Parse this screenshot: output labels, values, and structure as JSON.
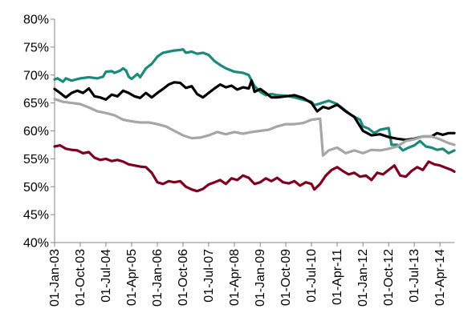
{
  "chart_data": {
    "type": "line",
    "title": "",
    "xlabel": "",
    "ylabel": "",
    "ylim": [
      0.4,
      0.8
    ],
    "xlim": [
      "2003-01-01",
      "2014-09-01"
    ],
    "grid": false,
    "legend": "none",
    "y_ticks": [
      0.4,
      0.45,
      0.5,
      0.55,
      0.6,
      0.65,
      0.7,
      0.75,
      0.8
    ],
    "y_tick_labels": [
      "40%",
      "45%",
      "50%",
      "55%",
      "60%",
      "65%",
      "70%",
      "75%",
      "80%"
    ],
    "x_tick_labels": [
      "01-Jan-03",
      "01-Oct-03",
      "01-Jul-04",
      "01-Apr-05",
      "01-Jan-06",
      "01-Oct-06",
      "01-Jul-07",
      "01-Apr-08",
      "01-Jan-09",
      "01-Oct-09",
      "01-Jul-10",
      "01-Apr-11",
      "01-Jan-12",
      "01-Oct-12",
      "01-Jul-13",
      "01-Apr-14"
    ],
    "x_tick_values": [
      "2003-01-01",
      "2003-10-01",
      "2004-07-01",
      "2005-04-01",
      "2006-01-01",
      "2006-10-01",
      "2007-07-01",
      "2008-04-01",
      "2009-01-01",
      "2009-10-01",
      "2010-07-01",
      "2011-04-01",
      "2012-01-01",
      "2012-10-01",
      "2013-07-01",
      "2014-04-01"
    ],
    "series": [
      {
        "color": "#1a8a7a",
        "points": [
          [
            "2003-01-01",
            0.692
          ],
          [
            "2003-02-01",
            0.694
          ],
          [
            "2003-04-01",
            0.688
          ],
          [
            "2003-05-01",
            0.694
          ],
          [
            "2003-07-01",
            0.69
          ],
          [
            "2003-10-01",
            0.694
          ],
          [
            "2004-01-01",
            0.696
          ],
          [
            "2004-04-01",
            0.694
          ],
          [
            "2004-06-01",
            0.697
          ],
          [
            "2004-07-01",
            0.706
          ],
          [
            "2004-09-01",
            0.707
          ],
          [
            "2004-10-01",
            0.704
          ],
          [
            "2004-12-01",
            0.708
          ],
          [
            "2005-01-01",
            0.712
          ],
          [
            "2005-02-01",
            0.708
          ],
          [
            "2005-03-01",
            0.697
          ],
          [
            "2005-04-01",
            0.693
          ],
          [
            "2005-06-01",
            0.702
          ],
          [
            "2005-07-01",
            0.696
          ],
          [
            "2005-09-01",
            0.712
          ],
          [
            "2005-11-01",
            0.72
          ],
          [
            "2006-01-01",
            0.733
          ],
          [
            "2006-03-01",
            0.74
          ],
          [
            "2006-05-01",
            0.742
          ],
          [
            "2006-07-01",
            0.744
          ],
          [
            "2006-09-01",
            0.745
          ],
          [
            "2006-10-01",
            0.746
          ],
          [
            "2006-11-01",
            0.74
          ],
          [
            "2007-01-01",
            0.742
          ],
          [
            "2007-03-01",
            0.738
          ],
          [
            "2007-05-01",
            0.74
          ],
          [
            "2007-07-01",
            0.736
          ],
          [
            "2007-09-01",
            0.725
          ],
          [
            "2007-11-01",
            0.718
          ],
          [
            "2008-01-01",
            0.712
          ],
          [
            "2008-04-01",
            0.706
          ],
          [
            "2008-07-01",
            0.704
          ],
          [
            "2008-09-01",
            0.7
          ],
          [
            "2008-10-01",
            0.69
          ],
          [
            "2008-11-01",
            0.68
          ],
          [
            "2009-01-01",
            0.67
          ],
          [
            "2009-03-01",
            0.664
          ],
          [
            "2009-05-01",
            0.666
          ],
          [
            "2009-07-01",
            0.664
          ],
          [
            "2009-10-01",
            0.663
          ],
          [
            "2010-01-01",
            0.66
          ],
          [
            "2010-04-01",
            0.656
          ],
          [
            "2010-07-01",
            0.652
          ],
          [
            "2010-08-01",
            0.646
          ],
          [
            "2010-10-01",
            0.649
          ],
          [
            "2011-01-01",
            0.654
          ],
          [
            "2011-04-01",
            0.648
          ],
          [
            "2011-06-01",
            0.64
          ],
          [
            "2011-09-01",
            0.628
          ],
          [
            "2011-12-01",
            0.62
          ],
          [
            "2012-01-01",
            0.608
          ],
          [
            "2012-03-01",
            0.604
          ],
          [
            "2012-05-01",
            0.596
          ],
          [
            "2012-07-01",
            0.602
          ],
          [
            "2012-10-01",
            0.605
          ],
          [
            "2012-11-01",
            0.575
          ],
          [
            "2013-01-01",
            0.575
          ],
          [
            "2013-03-01",
            0.565
          ],
          [
            "2013-05-01",
            0.57
          ],
          [
            "2013-07-01",
            0.574
          ],
          [
            "2013-09-01",
            0.582
          ],
          [
            "2013-11-01",
            0.572
          ],
          [
            "2014-01-01",
            0.57
          ],
          [
            "2014-03-01",
            0.566
          ],
          [
            "2014-05-01",
            0.568
          ],
          [
            "2014-07-01",
            0.56
          ],
          [
            "2014-09-01",
            0.565
          ]
        ]
      },
      {
        "color": "#000000",
        "points": [
          [
            "2003-01-01",
            0.675
          ],
          [
            "2003-03-01",
            0.668
          ],
          [
            "2003-05-01",
            0.66
          ],
          [
            "2003-07-01",
            0.668
          ],
          [
            "2003-09-01",
            0.672
          ],
          [
            "2003-11-01",
            0.668
          ],
          [
            "2004-01-01",
            0.676
          ],
          [
            "2004-03-01",
            0.662
          ],
          [
            "2004-05-01",
            0.66
          ],
          [
            "2004-07-01",
            0.656
          ],
          [
            "2004-09-01",
            0.665
          ],
          [
            "2004-11-01",
            0.662
          ],
          [
            "2005-01-01",
            0.672
          ],
          [
            "2005-03-01",
            0.668
          ],
          [
            "2005-05-01",
            0.662
          ],
          [
            "2005-07-01",
            0.659
          ],
          [
            "2005-09-01",
            0.668
          ],
          [
            "2005-11-01",
            0.66
          ],
          [
            "2006-01-01",
            0.668
          ],
          [
            "2006-03-01",
            0.675
          ],
          [
            "2006-05-01",
            0.683
          ],
          [
            "2006-07-01",
            0.687
          ],
          [
            "2006-09-01",
            0.686
          ],
          [
            "2006-11-01",
            0.677
          ],
          [
            "2007-01-01",
            0.68
          ],
          [
            "2007-03-01",
            0.666
          ],
          [
            "2007-05-01",
            0.66
          ],
          [
            "2007-07-01",
            0.668
          ],
          [
            "2007-09-01",
            0.676
          ],
          [
            "2007-11-01",
            0.683
          ],
          [
            "2008-01-01",
            0.678
          ],
          [
            "2008-03-01",
            0.681
          ],
          [
            "2008-05-01",
            0.674
          ],
          [
            "2008-07-01",
            0.678
          ],
          [
            "2008-09-01",
            0.676
          ],
          [
            "2008-10-01",
            0.69
          ],
          [
            "2008-11-01",
            0.67
          ],
          [
            "2009-01-01",
            0.675
          ],
          [
            "2009-03-01",
            0.668
          ],
          [
            "2009-05-01",
            0.66
          ],
          [
            "2009-07-01",
            0.66
          ],
          [
            "2009-10-01",
            0.662
          ],
          [
            "2010-01-01",
            0.664
          ],
          [
            "2010-04-01",
            0.659
          ],
          [
            "2010-07-01",
            0.65
          ],
          [
            "2010-09-01",
            0.635
          ],
          [
            "2010-11-01",
            0.643
          ],
          [
            "2011-01-01",
            0.64
          ],
          [
            "2011-04-01",
            0.647
          ],
          [
            "2011-07-01",
            0.635
          ],
          [
            "2011-10-01",
            0.625
          ],
          [
            "2012-01-01",
            0.6
          ],
          [
            "2012-04-01",
            0.592
          ],
          [
            "2012-07-01",
            0.594
          ],
          [
            "2012-10-01",
            0.589
          ],
          [
            "2013-01-01",
            0.586
          ],
          [
            "2013-04-01",
            0.584
          ],
          [
            "2013-07-01",
            0.586
          ],
          [
            "2013-10-01",
            0.59
          ],
          [
            "2014-01-01",
            0.59
          ],
          [
            "2014-03-01",
            0.596
          ],
          [
            "2014-05-01",
            0.593
          ],
          [
            "2014-07-01",
            0.596
          ],
          [
            "2014-09-01",
            0.596
          ]
        ]
      },
      {
        "color": "#a6a6a6",
        "points": [
          [
            "2003-01-01",
            0.657
          ],
          [
            "2003-04-01",
            0.652
          ],
          [
            "2003-07-01",
            0.65
          ],
          [
            "2003-10-01",
            0.648
          ],
          [
            "2004-01-01",
            0.642
          ],
          [
            "2004-04-01",
            0.635
          ],
          [
            "2004-07-01",
            0.632
          ],
          [
            "2004-10-01",
            0.628
          ],
          [
            "2005-01-01",
            0.62
          ],
          [
            "2005-04-01",
            0.617
          ],
          [
            "2005-07-01",
            0.615
          ],
          [
            "2005-10-01",
            0.615
          ],
          [
            "2006-01-01",
            0.612
          ],
          [
            "2006-04-01",
            0.608
          ],
          [
            "2006-07-01",
            0.6
          ],
          [
            "2006-10-01",
            0.592
          ],
          [
            "2007-01-01",
            0.587
          ],
          [
            "2007-04-01",
            0.588
          ],
          [
            "2007-07-01",
            0.592
          ],
          [
            "2007-10-01",
            0.598
          ],
          [
            "2008-01-01",
            0.594
          ],
          [
            "2008-04-01",
            0.598
          ],
          [
            "2008-07-01",
            0.595
          ],
          [
            "2008-10-01",
            0.598
          ],
          [
            "2009-01-01",
            0.6
          ],
          [
            "2009-04-01",
            0.602
          ],
          [
            "2009-07-01",
            0.608
          ],
          [
            "2009-10-01",
            0.612
          ],
          [
            "2010-01-01",
            0.612
          ],
          [
            "2010-04-01",
            0.614
          ],
          [
            "2010-07-01",
            0.62
          ],
          [
            "2010-10-01",
            0.622
          ],
          [
            "2010-11-01",
            0.556
          ],
          [
            "2011-01-01",
            0.565
          ],
          [
            "2011-04-01",
            0.57
          ],
          [
            "2011-07-01",
            0.56
          ],
          [
            "2011-10-01",
            0.565
          ],
          [
            "2012-01-01",
            0.56
          ],
          [
            "2012-04-01",
            0.566
          ],
          [
            "2012-07-01",
            0.565
          ],
          [
            "2012-10-01",
            0.568
          ],
          [
            "2013-01-01",
            0.572
          ],
          [
            "2013-04-01",
            0.582
          ],
          [
            "2013-07-01",
            0.585
          ],
          [
            "2013-10-01",
            0.59
          ],
          [
            "2014-01-01",
            0.59
          ],
          [
            "2014-04-01",
            0.585
          ],
          [
            "2014-07-01",
            0.578
          ],
          [
            "2014-09-01",
            0.575
          ]
        ]
      },
      {
        "color": "#800020",
        "points": [
          [
            "2003-01-01",
            0.572
          ],
          [
            "2003-03-01",
            0.574
          ],
          [
            "2003-05-01",
            0.568
          ],
          [
            "2003-07-01",
            0.566
          ],
          [
            "2003-09-01",
            0.565
          ],
          [
            "2003-11-01",
            0.56
          ],
          [
            "2004-01-01",
            0.562
          ],
          [
            "2004-03-01",
            0.552
          ],
          [
            "2004-05-01",
            0.548
          ],
          [
            "2004-07-01",
            0.55
          ],
          [
            "2004-09-01",
            0.546
          ],
          [
            "2004-11-01",
            0.548
          ],
          [
            "2005-01-01",
            0.545
          ],
          [
            "2005-03-01",
            0.54
          ],
          [
            "2005-05-01",
            0.538
          ],
          [
            "2005-07-01",
            0.536
          ],
          [
            "2005-09-01",
            0.535
          ],
          [
            "2005-11-01",
            0.525
          ],
          [
            "2006-01-01",
            0.508
          ],
          [
            "2006-03-01",
            0.505
          ],
          [
            "2006-05-01",
            0.51
          ],
          [
            "2006-07-01",
            0.508
          ],
          [
            "2006-09-01",
            0.51
          ],
          [
            "2006-11-01",
            0.5
          ],
          [
            "2007-01-01",
            0.495
          ],
          [
            "2007-03-01",
            0.492
          ],
          [
            "2007-05-01",
            0.496
          ],
          [
            "2007-07-01",
            0.504
          ],
          [
            "2007-09-01",
            0.508
          ],
          [
            "2007-11-01",
            0.512
          ],
          [
            "2008-01-01",
            0.505
          ],
          [
            "2008-03-01",
            0.515
          ],
          [
            "2008-05-01",
            0.512
          ],
          [
            "2008-07-01",
            0.52
          ],
          [
            "2008-09-01",
            0.516
          ],
          [
            "2008-11-01",
            0.505
          ],
          [
            "2009-01-01",
            0.508
          ],
          [
            "2009-03-01",
            0.515
          ],
          [
            "2009-05-01",
            0.51
          ],
          [
            "2009-07-01",
            0.516
          ],
          [
            "2009-09-01",
            0.508
          ],
          [
            "2009-11-01",
            0.506
          ],
          [
            "2010-01-01",
            0.51
          ],
          [
            "2010-03-01",
            0.502
          ],
          [
            "2010-05-01",
            0.508
          ],
          [
            "2010-07-01",
            0.505
          ],
          [
            "2010-08-01",
            0.495
          ],
          [
            "2010-10-01",
            0.505
          ],
          [
            "2010-12-01",
            0.52
          ],
          [
            "2011-02-01",
            0.53
          ],
          [
            "2011-04-01",
            0.535
          ],
          [
            "2011-06-01",
            0.528
          ],
          [
            "2011-08-01",
            0.522
          ],
          [
            "2011-10-01",
            0.525
          ],
          [
            "2011-12-01",
            0.518
          ],
          [
            "2012-02-01",
            0.52
          ],
          [
            "2012-04-01",
            0.512
          ],
          [
            "2012-06-01",
            0.525
          ],
          [
            "2012-08-01",
            0.522
          ],
          [
            "2012-10-01",
            0.53
          ],
          [
            "2012-12-01",
            0.538
          ],
          [
            "2013-02-01",
            0.52
          ],
          [
            "2013-04-01",
            0.518
          ],
          [
            "2013-06-01",
            0.528
          ],
          [
            "2013-08-01",
            0.535
          ],
          [
            "2013-10-01",
            0.53
          ],
          [
            "2013-12-01",
            0.545
          ],
          [
            "2014-02-01",
            0.54
          ],
          [
            "2014-04-01",
            0.538
          ],
          [
            "2014-06-01",
            0.534
          ],
          [
            "2014-08-01",
            0.53
          ],
          [
            "2014-09-01",
            0.527
          ]
        ]
      }
    ]
  }
}
